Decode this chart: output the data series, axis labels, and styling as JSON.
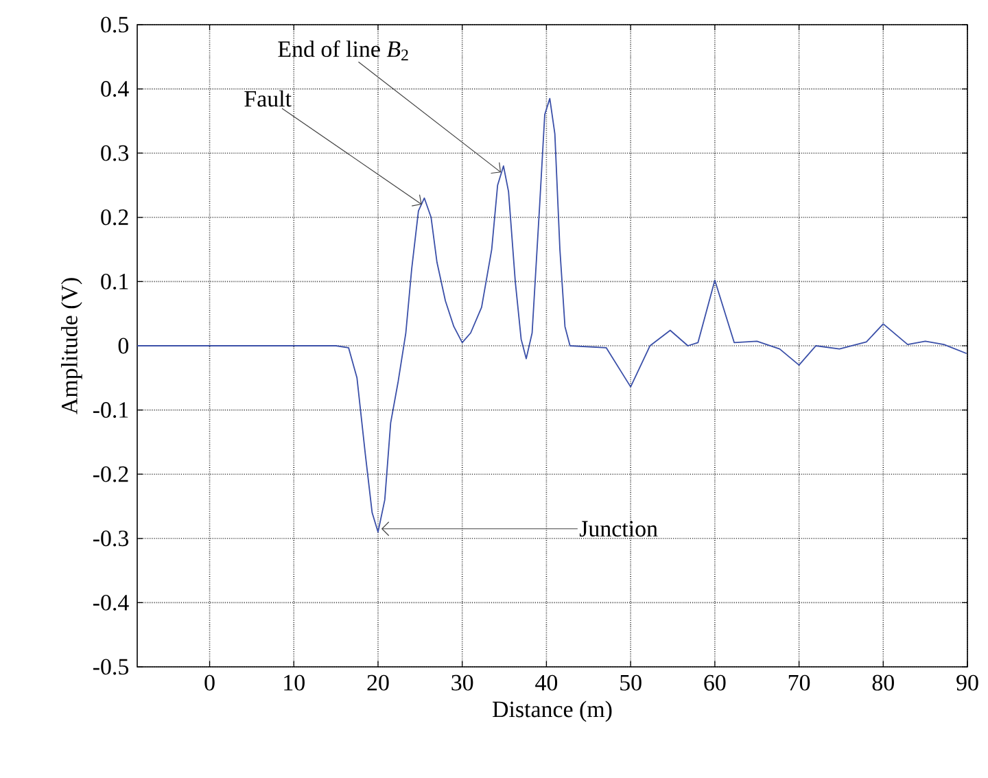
{
  "chart_data": {
    "type": "line",
    "xlabel": "Distance (m)",
    "ylabel": "Amplitude (V)",
    "xlim": [
      -8.6,
      90
    ],
    "xticks": [
      0,
      10,
      20,
      30,
      40,
      50,
      60,
      70,
      80,
      90
    ],
    "ylim": [
      -0.5,
      0.5
    ],
    "yticks": [
      -0.5,
      -0.4,
      -0.3,
      -0.2,
      -0.1,
      0,
      0.1,
      0.2,
      0.3,
      0.4,
      0.5
    ],
    "grid": true,
    "line_style": "solid",
    "marker": "none",
    "annotations": [
      {
        "text": "End of line *B*$_{2}$",
        "x": 34.6,
        "y": 0.27
      },
      {
        "text": "Fault",
        "x": 25.2,
        "y": 0.22
      },
      {
        "text": "Junction",
        "x": 20.4,
        "y": -0.285
      }
    ],
    "series": [
      {
        "color": "#3a4fa8",
        "x": [
          -8.6,
          15,
          16.5,
          17.5,
          18.5,
          19.3,
          20,
          20.8,
          21.5,
          22.4,
          23.3,
          24,
          24.8,
          25.5,
          26.3,
          27,
          28,
          29,
          30,
          31,
          32.3,
          33.5,
          34.2,
          34.9,
          35.5,
          36.3,
          37,
          37.6,
          38.3,
          39.2,
          39.8,
          40.4,
          41,
          41.6,
          42.2,
          42.8,
          47.1,
          50,
          52.3,
          54.7,
          56.8,
          58,
          60,
          62.3,
          65,
          67.7,
          70,
          72,
          74.8,
          78,
          80,
          82.9,
          85,
          87.2,
          89.9
        ],
        "values": [
          0,
          0,
          -0.003,
          -0.05,
          -0.17,
          -0.26,
          -0.29,
          -0.24,
          -0.12,
          -0.055,
          0.02,
          0.12,
          0.21,
          0.23,
          0.2,
          0.13,
          0.07,
          0.03,
          0.005,
          0.02,
          0.06,
          0.15,
          0.25,
          0.28,
          0.24,
          0.1,
          0.01,
          -0.02,
          0.02,
          0.22,
          0.36,
          0.385,
          0.33,
          0.15,
          0.03,
          0,
          -0.003,
          -0.064,
          0,
          0.024,
          0,
          0.005,
          0.102,
          0.005,
          0.007,
          -0.005,
          -0.03,
          0,
          -0.005,
          0.006,
          0.034,
          0.002,
          0.007,
          0.002,
          -0.012
        ]
      }
    ]
  }
}
